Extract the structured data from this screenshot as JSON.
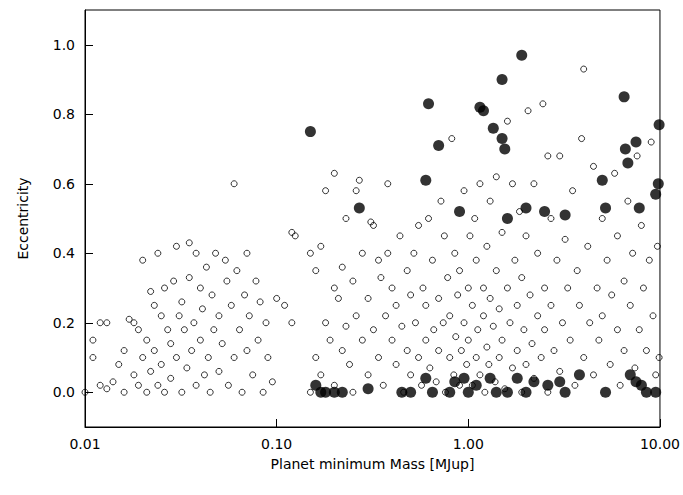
{
  "chart_data": {
    "type": "scatter",
    "x_label": "Planet minimum Mass [MJup]",
    "y_label": "Eccentricity",
    "log": "x",
    "grid": false,
    "xlim": [
      0.01,
      10
    ],
    "xticks": [
      {
        "value": 0.01,
        "label": "0.01"
      },
      {
        "value": 0.1,
        "label": "0.10"
      },
      {
        "value": 1,
        "label": "1.00"
      },
      {
        "value": 10,
        "label": "10.00"
      }
    ],
    "ylim": [
      -0.1,
      1.1
    ],
    "yticks": [
      {
        "value": 0,
        "label": "0.0"
      },
      0.2,
      0.4,
      0.6,
      0.8,
      {
        "value": 1,
        "label": "1.0"
      }
    ],
    "series": [
      {
        "marker": "open",
        "color": "#000000",
        "x": [
          0.01,
          0.011,
          0.011,
          0.012,
          0.013,
          0.012,
          0.013,
          0.014,
          0.015,
          0.016,
          0.016,
          0.017,
          0.018,
          0.018,
          0.019,
          0.019,
          0.02,
          0.02,
          0.021,
          0.021,
          0.022,
          0.022,
          0.023,
          0.023,
          0.024,
          0.024,
          0.025,
          0.025,
          0.026,
          0.026,
          0.027,
          0.028,
          0.028,
          0.029,
          0.03,
          0.03,
          0.031,
          0.032,
          0.032,
          0.033,
          0.034,
          0.035,
          0.035,
          0.036,
          0.037,
          0.038,
          0.038,
          0.04,
          0.04,
          0.041,
          0.042,
          0.043,
          0.044,
          0.045,
          0.046,
          0.047,
          0.048,
          0.05,
          0.05,
          0.052,
          0.054,
          0.055,
          0.056,
          0.058,
          0.06,
          0.06,
          0.062,
          0.064,
          0.066,
          0.068,
          0.07,
          0.07,
          0.072,
          0.075,
          0.078,
          0.08,
          0.082,
          0.085,
          0.088,
          0.09,
          0.095,
          0.1,
          0.11,
          0.12,
          0.12,
          0.125,
          0.15,
          0.15,
          0.16,
          0.16,
          0.17,
          0.17,
          0.18,
          0.18,
          0.19,
          0.2,
          0.2,
          0.2,
          0.21,
          0.22,
          0.22,
          0.23,
          0.23,
          0.24,
          0.25,
          0.25,
          0.26,
          0.26,
          0.27,
          0.28,
          0.28,
          0.3,
          0.3,
          0.31,
          0.32,
          0.32,
          0.34,
          0.34,
          0.35,
          0.36,
          0.37,
          0.38,
          0.38,
          0.4,
          0.4,
          0.42,
          0.42,
          0.44,
          0.45,
          0.46,
          0.48,
          0.48,
          0.5,
          0.5,
          0.52,
          0.53,
          0.55,
          0.55,
          0.57,
          0.58,
          0.6,
          0.6,
          0.62,
          0.63,
          0.65,
          0.66,
          0.68,
          0.7,
          0.7,
          0.72,
          0.74,
          0.75,
          0.76,
          0.78,
          0.8,
          0.8,
          0.82,
          0.84,
          0.85,
          0.86,
          0.88,
          0.9,
          0.9,
          0.92,
          0.95,
          0.95,
          0.98,
          1.0,
          1.0,
          1.02,
          1.05,
          1.05,
          1.08,
          1.1,
          1.1,
          1.12,
          1.15,
          1.15,
          1.2,
          1.2,
          1.22,
          1.25,
          1.25,
          1.28,
          1.3,
          1.3,
          1.35,
          1.38,
          1.4,
          1.4,
          1.45,
          1.45,
          1.5,
          1.5,
          1.55,
          1.6,
          1.6,
          1.65,
          1.7,
          1.7,
          1.75,
          1.8,
          1.8,
          1.85,
          1.9,
          1.9,
          1.95,
          2.0,
          2.0,
          2.05,
          2.1,
          2.15,
          2.2,
          2.2,
          2.3,
          2.3,
          2.4,
          2.45,
          2.5,
          2.5,
          2.6,
          2.6,
          2.7,
          2.7,
          2.8,
          2.9,
          3.0,
          3.0,
          3.1,
          3.2,
          3.3,
          3.4,
          3.5,
          3.6,
          3.7,
          3.8,
          3.9,
          4.0,
          4.0,
          4.2,
          4.3,
          4.5,
          4.5,
          4.7,
          4.8,
          5.0,
          5.0,
          5.3,
          5.5,
          5.6,
          5.8,
          6.0,
          6.0,
          6.2,
          6.5,
          6.5,
          6.8,
          7.0,
          7.2,
          7.4,
          7.6,
          7.8,
          8.0,
          8.2,
          8.5,
          8.8,
          9.0,
          9.2,
          9.5,
          9.7,
          9.9
        ],
        "values": [
          0.0,
          0.15,
          0.1,
          0.2,
          0.2,
          0.02,
          0.01,
          0.03,
          0.08,
          0.12,
          0.0,
          0.21,
          0.2,
          0.05,
          0.18,
          0.02,
          0.38,
          0.1,
          0.15,
          0.0,
          0.29,
          0.06,
          0.25,
          0.12,
          0.4,
          0.02,
          0.22,
          0.08,
          0.0,
          0.3,
          0.18,
          0.14,
          0.04,
          0.32,
          0.1,
          0.42,
          0.22,
          0.0,
          0.26,
          0.18,
          0.07,
          0.43,
          0.33,
          0.12,
          0.2,
          0.4,
          0.02,
          0.3,
          0.15,
          0.24,
          0.05,
          0.36,
          0.1,
          0.0,
          0.28,
          0.18,
          0.4,
          0.22,
          0.06,
          0.14,
          0.38,
          0.32,
          0.02,
          0.25,
          0.6,
          0.1,
          0.35,
          0.18,
          0.0,
          0.28,
          0.4,
          0.12,
          0.22,
          0.05,
          0.32,
          0.15,
          0.26,
          0.0,
          0.2,
          0.1,
          0.03,
          0.27,
          0.25,
          0.46,
          0.2,
          0.45,
          0.4,
          0.0,
          0.35,
          0.1,
          0.42,
          0.05,
          0.2,
          0.58,
          0.15,
          0.63,
          0.3,
          0.02,
          0.27,
          0.12,
          0.36,
          0.5,
          0.19,
          0.08,
          0.32,
          0.0,
          0.58,
          0.22,
          0.61,
          0.15,
          0.4,
          0.05,
          0.27,
          0.49,
          0.48,
          0.18,
          0.38,
          0.1,
          0.33,
          0.02,
          0.22,
          0.6,
          0.4,
          0.15,
          0.3,
          0.08,
          0.25,
          0.45,
          0.19,
          0.0,
          0.12,
          0.35,
          0.28,
          0.05,
          0.4,
          0.2,
          0.48,
          0.1,
          0.02,
          0.3,
          0.15,
          0.25,
          0.5,
          0.07,
          0.38,
          0.18,
          0.03,
          0.27,
          0.12,
          0.55,
          0.2,
          0.45,
          0.0,
          0.33,
          0.1,
          0.22,
          0.73,
          0.05,
          0.4,
          0.16,
          0.28,
          0.02,
          0.35,
          0.12,
          0.58,
          0.2,
          0.08,
          0.3,
          0.15,
          0.45,
          0.02,
          0.25,
          0.5,
          0.1,
          0.38,
          0.18,
          0.05,
          0.6,
          0.22,
          0.3,
          0.0,
          0.42,
          0.13,
          0.08,
          0.27,
          0.55,
          0.19,
          0.03,
          0.35,
          0.62,
          0.1,
          0.24,
          0.46,
          0.15,
          0.01,
          0.3,
          0.78,
          0.2,
          0.6,
          0.07,
          0.38,
          0.12,
          0.25,
          0.52,
          0.0,
          0.33,
          0.18,
          0.45,
          0.08,
          0.81,
          0.28,
          0.14,
          0.6,
          0.04,
          0.22,
          0.4,
          0.1,
          0.83,
          0.3,
          0.18,
          0.68,
          0.0,
          0.5,
          0.25,
          0.12,
          0.38,
          0.68,
          0.06,
          0.2,
          0.44,
          0.3,
          0.15,
          0.58,
          0.02,
          0.35,
          0.25,
          0.73,
          0.1,
          0.93,
          0.42,
          0.2,
          0.65,
          0.05,
          0.3,
          0.15,
          0.5,
          0.22,
          0.38,
          0.08,
          0.28,
          0.63,
          0.18,
          0.45,
          0.02,
          0.32,
          0.12,
          0.55,
          0.25,
          0.4,
          0.07,
          0.68,
          0.18,
          0.48,
          0.3,
          0.12,
          0.38,
          0.72,
          0.22,
          0.05,
          0.42,
          0.1
        ]
      },
      {
        "marker": "filled",
        "color": "#000000",
        "x": [
          0.15,
          0.27,
          0.6,
          0.62,
          0.7,
          0.9,
          1.15,
          1.2,
          1.35,
          1.5,
          1.5,
          1.55,
          1.6,
          1.9,
          2.0,
          2.5,
          3.2,
          5.0,
          5.2,
          6.5,
          6.6,
          6.8,
          7.5,
          7.8,
          9.5,
          9.8,
          9.9,
          0.16,
          0.17,
          0.18,
          0.2,
          0.22,
          0.3,
          0.45,
          0.5,
          0.6,
          0.65,
          0.8,
          0.85,
          0.95,
          1.0,
          1.1,
          1.3,
          1.4,
          1.6,
          1.8,
          2.0,
          2.2,
          2.6,
          3.0,
          3.2,
          3.8,
          5.2,
          7.0,
          7.5,
          8.0,
          8.5,
          9.5
        ],
        "values": [
          0.75,
          0.53,
          0.61,
          0.83,
          0.71,
          0.52,
          0.82,
          0.81,
          0.76,
          0.9,
          0.73,
          0.7,
          0.5,
          0.97,
          0.53,
          0.52,
          0.51,
          0.61,
          0.53,
          0.85,
          0.7,
          0.66,
          0.72,
          0.53,
          0.57,
          0.6,
          0.77,
          0.02,
          0.0,
          0.0,
          0.0,
          0.0,
          0.01,
          0.0,
          0.0,
          0.04,
          0.0,
          0.0,
          0.03,
          0.04,
          0.0,
          0.02,
          0.04,
          0.0,
          0.0,
          0.04,
          0.0,
          0.03,
          0.02,
          0.03,
          0.0,
          0.05,
          0.0,
          0.05,
          0.03,
          0.02,
          0.0,
          0.0
        ]
      }
    ]
  }
}
